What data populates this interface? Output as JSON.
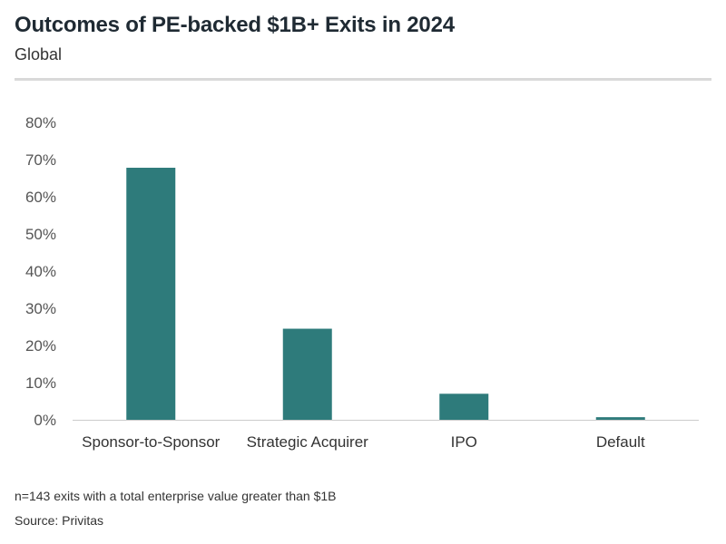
{
  "header": {
    "title": "Outcomes of PE-backed $1B+ Exits in 2024",
    "subtitle": "Global"
  },
  "footer": {
    "note": "n=143 exits with a total enterprise value greater than $1B",
    "source": "Source: Privitas"
  },
  "colors": {
    "bar": "#2e7b7b",
    "axis": "#cccccc"
  },
  "chart_data": {
    "type": "bar",
    "title": "Outcomes of PE-backed $1B+ Exits in 2024",
    "subtitle": "Global",
    "categories": [
      "Sponsor-to-Sponsor",
      "Strategic Acquirer",
      "IPO",
      "Default"
    ],
    "values": [
      67.8,
      24.5,
      7.0,
      0.7
    ],
    "unit": "%",
    "ylim": [
      0,
      80
    ],
    "yticks": [
      0,
      10,
      20,
      30,
      40,
      50,
      60,
      70,
      80
    ],
    "ytick_labels": [
      "0%",
      "10%",
      "20%",
      "30%",
      "40%",
      "50%",
      "60%",
      "70%",
      "80%"
    ],
    "xlabel": "",
    "ylabel": "",
    "grid": false,
    "legend": "none"
  }
}
